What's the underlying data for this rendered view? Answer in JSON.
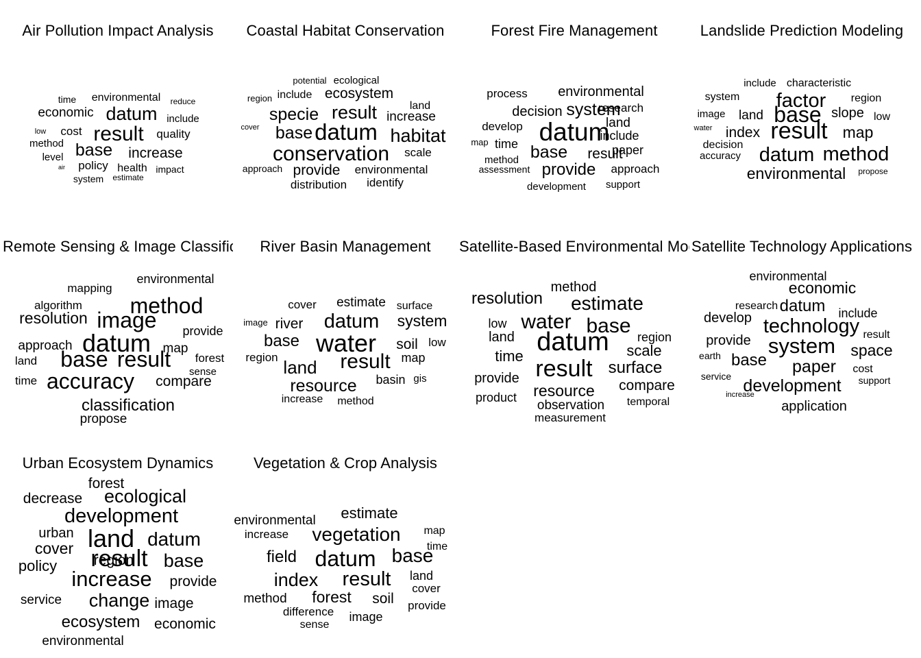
{
  "chart_data": {
    "type": "word-cloud",
    "panels": [
      {
        "title": "Air Pollution Impact Analysis",
        "words": [
          "time",
          "environmental",
          "reduce",
          "economic",
          "datum",
          "include",
          "low",
          "cost",
          "result",
          "quality",
          "method",
          "base",
          "increase",
          "level",
          "air",
          "policy",
          "health",
          "impact",
          "system",
          "estimate"
        ]
      },
      {
        "title": "Coastal Habitat Conservation",
        "words": [
          "potential",
          "ecological",
          "region",
          "include",
          "ecosystem",
          "land",
          "cover",
          "specie",
          "result",
          "increase",
          "base",
          "datum",
          "habitat",
          "conservation",
          "scale",
          "approach",
          "provide",
          "environmental",
          "distribution",
          "identify"
        ]
      },
      {
        "title": "Forest Fire Management",
        "words": [
          "process",
          "environmental",
          "decision",
          "system",
          "research",
          "land",
          "develop",
          "datum",
          "include",
          "map",
          "time",
          "paper",
          "method",
          "base",
          "result",
          "assessment",
          "provide",
          "approach",
          "development",
          "support"
        ]
      },
      {
        "title": "Landslide Prediction Modeling",
        "words": [
          "include",
          "characteristic",
          "system",
          "factor",
          "region",
          "image",
          "land",
          "base",
          "slope",
          "low",
          "water",
          "index",
          "result",
          "map",
          "decision",
          "accuracy",
          "datum",
          "method",
          "environmental",
          "propose"
        ]
      },
      {
        "title": "Remote Sensing & Image Classification",
        "words": [
          "mapping",
          "environmental",
          "algorithm",
          "method",
          "resolution",
          "image",
          "provide",
          "approach",
          "datum",
          "map",
          "land",
          "base",
          "result",
          "forest",
          "sense",
          "time",
          "accuracy",
          "compare",
          "classification",
          "propose"
        ]
      },
      {
        "title": "River Basin Management",
        "words": [
          "cover",
          "estimate",
          "surface",
          "image",
          "river",
          "datum",
          "system",
          "base",
          "water",
          "soil",
          "low",
          "region",
          "land",
          "result",
          "map",
          "resource",
          "basin",
          "gis",
          "increase",
          "method"
        ]
      },
      {
        "title": "Satellite-Based Environmental Modeling",
        "words": [
          "method",
          "resolution",
          "estimate",
          "low",
          "water",
          "base",
          "region",
          "land",
          "datum",
          "scale",
          "time",
          "result",
          "surface",
          "provide",
          "resource",
          "compare",
          "product",
          "observation",
          "temporal",
          "measurement"
        ]
      },
      {
        "title": "Satellite Technology Applications",
        "words": [
          "environmental",
          "economic",
          "research",
          "datum",
          "include",
          "develop",
          "technology",
          "result",
          "provide",
          "system",
          "space",
          "earth",
          "base",
          "paper",
          "cost",
          "service",
          "development",
          "support",
          "increase",
          "application"
        ]
      },
      {
        "title": "Urban Ecosystem Dynamics",
        "words": [
          "forest",
          "decrease",
          "ecological",
          "development",
          "urban",
          "land",
          "datum",
          "cover",
          "region",
          "policy",
          "result",
          "base",
          "increase",
          "provide",
          "service",
          "change",
          "image",
          "ecosystem",
          "economic",
          "environmental"
        ]
      },
      {
        "title": "Vegetation & Crop Analysis",
        "words": [
          "environmental",
          "estimate",
          "increase",
          "vegetation",
          "map",
          "time",
          "field",
          "datum",
          "base",
          "land",
          "index",
          "result",
          "cover",
          "method",
          "forest",
          "soil",
          "provide",
          "difference",
          "sense",
          "image"
        ]
      }
    ]
  }
}
